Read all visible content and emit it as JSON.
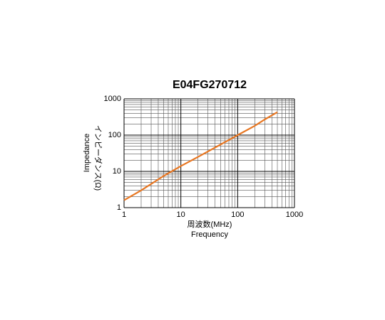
{
  "chart_data": {
    "type": "line",
    "title": "E04FG270712",
    "x_label": "周波数(MHz)",
    "x_label_2": "Frequency",
    "y_label": "Impedance",
    "y_label_2": "インピーダンス(Ω)",
    "x": [
      1,
      2,
      5,
      10,
      20,
      50,
      100,
      200,
      300,
      500
    ],
    "series": [
      {
        "color": "#e87722",
        "values": [
          1.6,
          3,
          7.5,
          14,
          25,
          55,
          100,
          180,
          270,
          430
        ]
      }
    ],
    "xlim": [
      1,
      1000
    ],
    "ylim": [
      1,
      1000
    ],
    "xticks": [
      1,
      10,
      100,
      1000
    ],
    "yticks": [
      1,
      10,
      100,
      1000
    ],
    "log_x": true,
    "log_y": true,
    "grid": true
  }
}
